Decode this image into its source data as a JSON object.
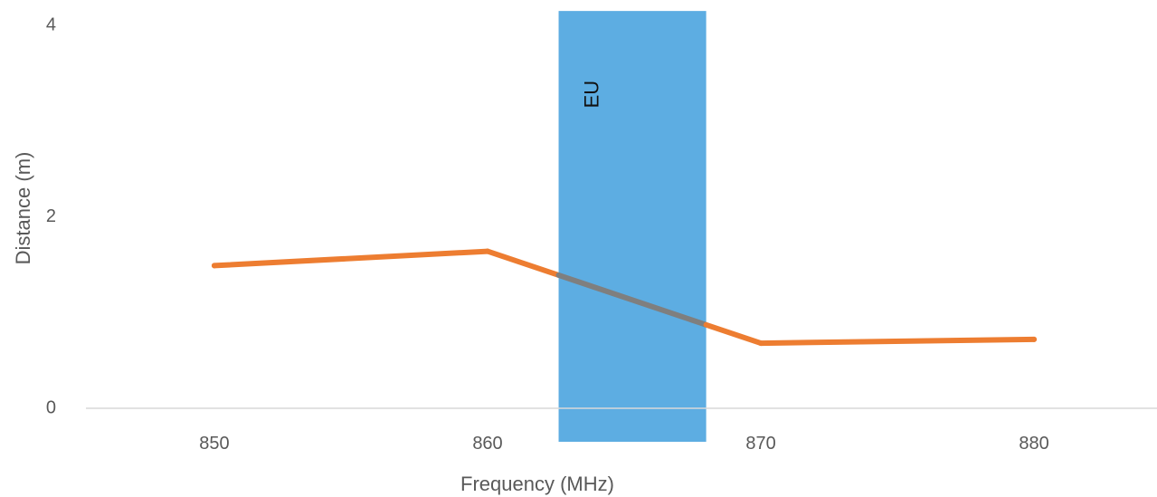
{
  "chart_data": {
    "type": "line",
    "title": "",
    "xlabel": "Frequency (MHz)",
    "ylabel": "Distance (m)",
    "x_ticks": [
      850,
      860,
      870,
      880
    ],
    "y_ticks": [
      0,
      2,
      4
    ],
    "xlim": [
      845.3,
      884.5
    ],
    "ylim": [
      0,
      4
    ],
    "grid": false,
    "legend": "none",
    "series": [
      {
        "color": "#ED7D31",
        "points": [
          {
            "x": 850,
            "y": 1.49
          },
          {
            "x": 860,
            "y": 1.64
          },
          {
            "x": 870,
            "y": 0.68
          },
          {
            "x": 880,
            "y": 0.72
          }
        ]
      }
    ],
    "bands": [
      {
        "label": "EU",
        "x_start": 862.6,
        "x_end": 868.0,
        "y_start": -0.35,
        "y_end": 4.15,
        "color": "#5DADE2",
        "overlap_line_color": "#7F7F7F"
      }
    ],
    "axis_color": "#D9D9D9",
    "text_color": "#595959"
  }
}
